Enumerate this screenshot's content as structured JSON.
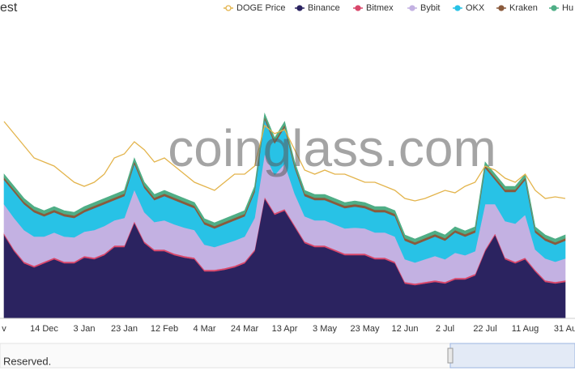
{
  "chart_data": {
    "type": "area",
    "title": "est",
    "watermark": "coinglass.com",
    "footer": "Reserved.",
    "categories": [
      "v",
      null,
      null,
      null,
      "14 Dec",
      null,
      null,
      null,
      "3 Jan",
      null,
      null,
      null,
      "23 Jan",
      null,
      null,
      null,
      "12 Feb",
      null,
      null,
      null,
      "4 Mar",
      null,
      null,
      null,
      "24 Mar",
      null,
      null,
      null,
      "13 Apr",
      null,
      null,
      null,
      "3 May",
      null,
      null,
      null,
      "23 May",
      null,
      null,
      null,
      "12 Jun",
      null,
      null,
      null,
      "2 Jul",
      null,
      null,
      null,
      "22 Jul",
      null,
      null,
      null,
      "11 Aug",
      null,
      null,
      null,
      "31 Au"
    ],
    "series": [
      {
        "name": "DOGE Price",
        "color": "#e3b44c",
        "axis": "y2",
        "values": [
          243,
          228,
          213,
          198,
          193,
          188,
          178,
          168,
          163,
          168,
          178,
          198,
          203,
          218,
          208,
          193,
          198,
          188,
          178,
          168,
          163,
          158,
          168,
          178,
          178,
          188,
          238,
          228,
          233,
          208,
          183,
          178,
          183,
          178,
          178,
          173,
          168,
          168,
          163,
          158,
          148,
          145,
          148,
          153,
          158,
          155,
          163,
          168,
          188,
          183,
          173,
          168,
          178,
          158,
          148,
          150,
          148
        ]
      },
      {
        "name": "Binance",
        "color": "#2b2360",
        "values": [
          103,
          83,
          68,
          63,
          68,
          73,
          68,
          68,
          75,
          73,
          78,
          88,
          88,
          118,
          93,
          83,
          83,
          78,
          75,
          73,
          58,
          58,
          60,
          63,
          68,
          83,
          148,
          128,
          133,
          113,
          93,
          88,
          88,
          83,
          78,
          78,
          78,
          73,
          73,
          68,
          43,
          41,
          43,
          45,
          43,
          48,
          48,
          53,
          83,
          103,
          73,
          68,
          73,
          58,
          45,
          43,
          45
        ]
      },
      {
        "name": "Bitmex",
        "color": "#d9476b",
        "values": [
          2,
          2,
          2,
          2,
          2,
          2,
          2,
          2,
          2,
          2,
          2,
          2,
          2,
          2,
          2,
          2,
          2,
          2,
          2,
          2,
          2,
          2,
          2,
          2,
          2,
          2,
          2,
          2,
          2,
          2,
          2,
          2,
          2,
          2,
          2,
          2,
          2,
          2,
          2,
          2,
          2,
          2,
          2,
          2,
          2,
          2,
          2,
          2,
          2,
          2,
          2,
          2,
          2,
          2,
          2,
          2,
          2
        ]
      },
      {
        "name": "Bybit",
        "color": "#c3b1e2",
        "values": [
          36,
          39,
          39,
          36,
          31,
          31,
          31,
          30,
          30,
          34,
          34,
          31,
          34,
          39,
          36,
          34,
          36,
          36,
          35,
          34,
          31,
          28,
          30,
          31,
          31,
          39,
          53,
          47,
          56,
          39,
          31,
          31,
          31,
          31,
          31,
          32,
          31,
          31,
          31,
          31,
          28,
          26,
          28,
          30,
          28,
          31,
          28,
          28,
          56,
          36,
          45,
          47,
          53,
          25,
          27,
          25,
          27
        ]
      },
      {
        "name": "OKX",
        "color": "#28c2e6",
        "values": [
          30,
          32,
          32,
          30,
          25,
          25,
          25,
          24,
          24,
          27,
          27,
          25,
          27,
          32,
          30,
          27,
          30,
          30,
          29,
          27,
          25,
          23,
          24,
          25,
          25,
          32,
          43,
          39,
          45,
          32,
          25,
          25,
          25,
          25,
          25,
          26,
          25,
          25,
          25,
          25,
          23,
          22,
          23,
          24,
          23,
          25,
          23,
          23,
          45,
          30,
          36,
          39,
          43,
          21,
          22,
          21,
          22
        ]
      },
      {
        "name": "Kraken",
        "color": "#8a5a3c",
        "values": [
          3,
          3,
          3,
          3,
          3,
          3,
          3,
          3,
          3,
          3,
          3,
          3,
          3,
          3,
          3,
          3,
          3,
          3,
          3,
          3,
          3,
          3,
          3,
          3,
          3,
          3,
          3,
          3,
          3,
          3,
          3,
          3,
          3,
          3,
          3,
          3,
          3,
          3,
          3,
          3,
          3,
          3,
          3,
          3,
          3,
          3,
          3,
          3,
          3,
          3,
          3,
          3,
          3,
          3,
          3,
          3,
          3
        ]
      },
      {
        "name": "Hu",
        "color": "#4fae86",
        "values": [
          4,
          4,
          4,
          4,
          4,
          4,
          4,
          4,
          4,
          4,
          4,
          4,
          4,
          4,
          4,
          4,
          4,
          4,
          4,
          4,
          4,
          4,
          4,
          4,
          4,
          4,
          4,
          4,
          4,
          4,
          4,
          4,
          4,
          4,
          4,
          4,
          4,
          4,
          4,
          4,
          4,
          4,
          4,
          4,
          4,
          4,
          4,
          4,
          4,
          4,
          4,
          4,
          4,
          4,
          4,
          4,
          4
        ]
      }
    ]
  }
}
